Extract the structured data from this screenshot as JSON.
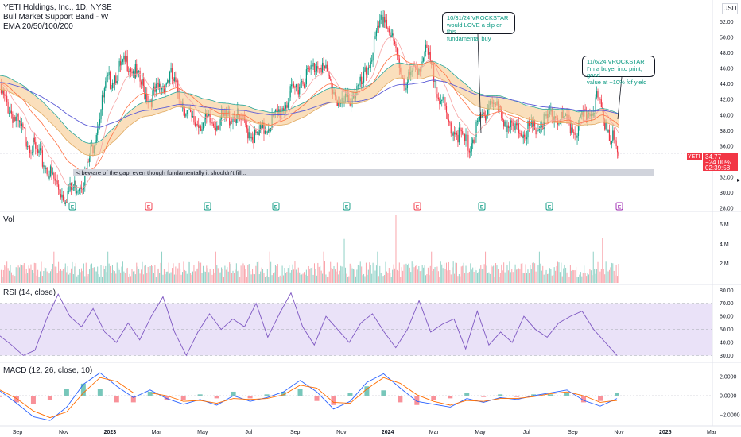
{
  "legend": {
    "symbol_line": "YETI Holdings, Inc., 1D, NYSE",
    "indicator_1": "Bull Market Support Band - W",
    "indicator_2": "EMA 20/50/100/200"
  },
  "currency_label": "USD",
  "last_price": {
    "symbol": "YETI",
    "price": "34.77",
    "change": "−24.00%",
    "countdown": "02:39:58"
  },
  "annotations": [
    {
      "text": "10/31/24 VROCKSTAR\nwould LOVE a dip on this\nfundamental buy"
    },
    {
      "text": "11/6/24 VROCKSTAR\nI'm a buyer into print, good\nvalue at ~10% fcf yield"
    },
    {
      "text": "< beware of the gap, even though fundamentally it shouldn't fill..."
    }
  ],
  "pane_labels": {
    "volume": "Vol",
    "rsi": "RSI (14, close)",
    "macd": "MACD (12, 26, close, 10)"
  },
  "earnings_markers": [
    "E",
    "E",
    "E",
    "E",
    "E",
    "E",
    "E",
    "E",
    "E"
  ],
  "colors": {
    "up": "#089981",
    "down": "#f23645",
    "rsi_line": "#7e57c2",
    "rsi_band": "#e1d5f5",
    "macd": "#2962ff",
    "signal": "#ff6d00"
  },
  "chart_data": [
    {
      "type": "candlestick",
      "title": "YETI Holdings, Inc., 1D, NYSE",
      "x_ticks": [
        "Sep",
        "Nov",
        "2023",
        "Mar",
        "May",
        "Jul",
        "Sep",
        "Nov",
        "2024",
        "Mar",
        "May",
        "Jul",
        "Sep",
        "Nov",
        "2025",
        "Mar"
      ],
      "y_ticks": [
        "52.00",
        "50.00",
        "48.00",
        "46.00",
        "44.00",
        "42.00",
        "40.00",
        "38.00",
        "36.00",
        "34.00",
        "32.00",
        "30.00",
        "28.00"
      ],
      "ylim": [
        28,
        54
      ],
      "close_path": [
        {
          "x": "Sep",
          "y": 43
        },
        {
          "x": "Sep",
          "y": 38
        },
        {
          "x": "Oct",
          "y": 34
        },
        {
          "x": "Oct",
          "y": 29.5
        },
        {
          "x": "Nov",
          "y": 32
        },
        {
          "x": "Nov",
          "y": 44
        },
        {
          "x": "Dec",
          "y": 47
        },
        {
          "x": "2023",
          "y": 42
        },
        {
          "x": "Feb",
          "y": 45
        },
        {
          "x": "Mar",
          "y": 39
        },
        {
          "x": "Apr",
          "y": 39
        },
        {
          "x": "May",
          "y": 40
        },
        {
          "x": "Jun",
          "y": 37
        },
        {
          "x": "Jul",
          "y": 40
        },
        {
          "x": "Aug",
          "y": 44
        },
        {
          "x": "Sep",
          "y": 47
        },
        {
          "x": "Oct",
          "y": 41
        },
        {
          "x": "Nov",
          "y": 44
        },
        {
          "x": "Dec",
          "y": 53
        },
        {
          "x": "2024",
          "y": 44
        },
        {
          "x": "Feb",
          "y": 48
        },
        {
          "x": "Mar",
          "y": 39
        },
        {
          "x": "Apr",
          "y": 36
        },
        {
          "x": "May",
          "y": 42
        },
        {
          "x": "Jun",
          "y": 38
        },
        {
          "x": "Jul",
          "y": 38
        },
        {
          "x": "Aug",
          "y": 40
        },
        {
          "x": "Sep",
          "y": 38
        },
        {
          "x": "Oct",
          "y": 42
        },
        {
          "x": "Nov",
          "y": 34.77
        }
      ],
      "last": 34.77
    },
    {
      "type": "bar",
      "title": "Vol",
      "y_ticks": [
        "6 M",
        "4 M",
        "2 M"
      ],
      "ylim": [
        0,
        7000000
      ],
      "note": "daily volume bars mostly 0.5M–2.5M, spikes ~7M near Jun 2023 and ~4.5M near Feb/May 2024"
    },
    {
      "type": "line",
      "title": "RSI (14, close)",
      "y_ticks": [
        "80.00",
        "70.00",
        "60.00",
        "50.00",
        "40.00",
        "30.00"
      ],
      "ylim": [
        26,
        82
      ],
      "band": [
        30,
        70
      ],
      "values": [
        45,
        38,
        30,
        34,
        58,
        77,
        60,
        52,
        66,
        48,
        40,
        55,
        42,
        60,
        75,
        48,
        30,
        48,
        62,
        50,
        58,
        52,
        70,
        44,
        62,
        78,
        52,
        38,
        60,
        50,
        40,
        55,
        62,
        48,
        36,
        50,
        72,
        48,
        54,
        58,
        35,
        64,
        38,
        48,
        40,
        60,
        50,
        44,
        55,
        60,
        64,
        50,
        40,
        30
      ]
    },
    {
      "type": "line",
      "title": "MACD (12, 26, close, 10)",
      "y_ticks": [
        "2.0000",
        "0.0000",
        "−2.0000"
      ],
      "ylim": [
        -3,
        3
      ],
      "series": [
        {
          "name": "MACD",
          "values": [
            0.5,
            -0.8,
            -2.2,
            -2.6,
            -1.2,
            1.2,
            2.4,
            1.0,
            -0.2,
            0.6,
            -0.3,
            -0.9,
            -0.4,
            -1.0,
            0.0,
            -0.6,
            -0.2,
            0.4,
            1.6,
            0.4,
            -1.4,
            -0.6,
            1.4,
            2.3,
            0.8,
            -0.6,
            -0.9,
            -1.2,
            -0.3,
            -0.7,
            -0.2,
            -0.4,
            0.0,
            0.3,
            0.6,
            -0.5,
            -1.1,
            -0.3
          ]
        },
        {
          "name": "Signal",
          "values": [
            0.6,
            -0.3,
            -1.6,
            -2.3,
            -1.7,
            0.3,
            1.9,
            1.5,
            0.3,
            0.3,
            0.0,
            -0.6,
            -0.5,
            -0.8,
            -0.3,
            -0.4,
            -0.3,
            0.1,
            1.1,
            0.8,
            -0.7,
            -0.8,
            0.7,
            1.9,
            1.3,
            0.1,
            -0.6,
            -1.0,
            -0.5,
            -0.6,
            -0.3,
            -0.3,
            -0.1,
            0.2,
            0.4,
            0.0,
            -0.7,
            -0.5
          ]
        }
      ]
    }
  ]
}
